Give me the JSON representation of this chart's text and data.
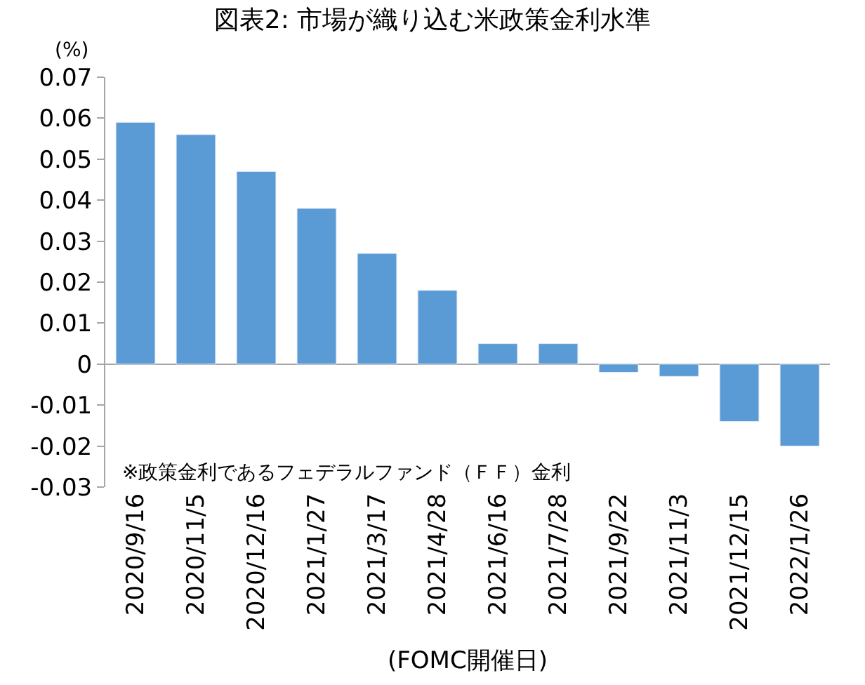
{
  "chart_data": {
    "type": "bar",
    "title": "図表2: 市場が織り込む米政策金利水準",
    "categories": [
      "2020/9/16",
      "2020/11/5",
      "2020/12/16",
      "2021/1/27",
      "2021/3/17",
      "2021/4/28",
      "2021/6/16",
      "2021/7/28",
      "2021/9/22",
      "2021/11/3",
      "2021/12/15",
      "2022/1/26"
    ],
    "values": [
      0.059,
      0.056,
      0.047,
      0.038,
      0.027,
      0.018,
      0.005,
      0.005,
      -0.002,
      -0.003,
      -0.014,
      -0.02
    ],
    "color": "#5b9bd5",
    "xlabel": "(FOMC開催日)",
    "ylabel": "(%)",
    "ylim": [
      -0.03,
      0.07
    ],
    "yticks": [
      {
        "value": -0.03,
        "label": "-0.03"
      },
      {
        "value": -0.02,
        "label": "-0.02"
      },
      {
        "value": -0.01,
        "label": "-0.01"
      },
      0,
      {
        "value": 0.01,
        "label": "0.01"
      },
      {
        "value": 0.02,
        "label": "0.02"
      },
      {
        "value": 0.03,
        "label": "0.03"
      },
      {
        "value": 0.04,
        "label": "0.04"
      },
      {
        "value": 0.05,
        "label": "0.05"
      },
      {
        "value": 0.06,
        "label": "0.06"
      },
      {
        "value": 0.07,
        "label": "0.07"
      }
    ],
    "annotations": [
      "※政策金利であるフェデラルファンド（ＦＦ）金利"
    ]
  }
}
